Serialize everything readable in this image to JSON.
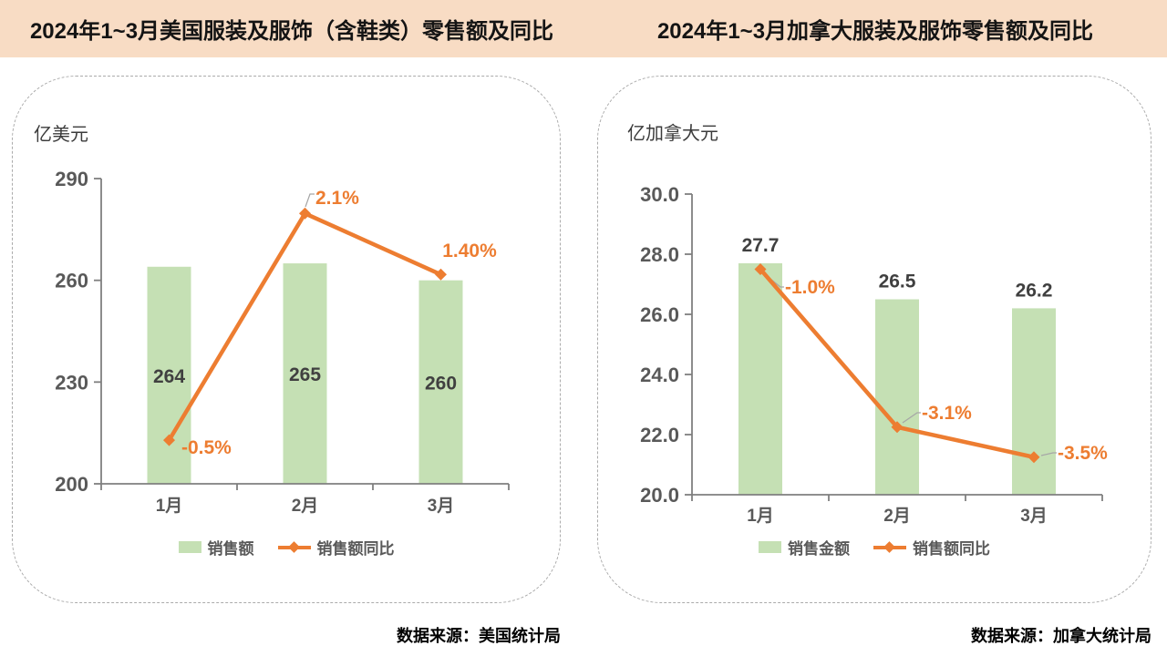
{
  "header": {
    "left_title": "2024年1~3月美国服装及服饰（含鞋类）零售额及同比",
    "right_title": "2024年1~3月加拿大服装及服饰零售额及同比",
    "bg_color": "#F8DCC4"
  },
  "colors": {
    "bar_fill": "#C5E0B4",
    "line": "#ED7D31",
    "axis_line": "#7F7F7F",
    "axis_label": "#595959",
    "bar_label": "#404040",
    "pct_label": "#ED7D31",
    "legend_text": "#595959",
    "leader_line": "#A6A6A6",
    "panel_border": "#ABABAB"
  },
  "chart_data": [
    {
      "type": "bar+line",
      "title": "2024年1~3月美国服装及服饰（含鞋类）零售额及同比",
      "unit_label": "亿美元",
      "categories": [
        "1月",
        "2月",
        "3月"
      ],
      "series": [
        {
          "name": "销售额",
          "type": "bar",
          "values": [
            264,
            265,
            260
          ],
          "labels": [
            "264",
            "265",
            "260"
          ]
        },
        {
          "name": "销售额同比",
          "type": "line",
          "values": [
            -0.5,
            2.1,
            1.4
          ],
          "labels": [
            "-0.5%",
            "2.1%",
            "1.40%"
          ]
        }
      ],
      "y_axis": {
        "min": 200,
        "max": 290,
        "ticks": [
          "290",
          "260",
          "230",
          "200"
        ]
      },
      "secondary_y_axis": {
        "min": -1.0,
        "max": 2.5,
        "visible": false
      },
      "legend": [
        "销售额",
        "销售额同比"
      ],
      "legend_position": "bottom",
      "grid": false,
      "source": "数据来源：美国统计局"
    },
    {
      "type": "bar+line",
      "title": "2024年1~3月加拿大服装及服饰零售额及同比",
      "unit_label": "亿加拿大元",
      "categories": [
        "1月",
        "2月",
        "3月"
      ],
      "series": [
        {
          "name": "销售金额",
          "type": "bar",
          "values": [
            27.7,
            26.5,
            26.2
          ],
          "labels": [
            "27.7",
            "26.5",
            "26.2"
          ]
        },
        {
          "name": "销售额同比",
          "type": "line",
          "values": [
            -1.0,
            -3.1,
            -3.5
          ],
          "labels": [
            "-1.0%",
            "-3.1%",
            "-3.5%"
          ]
        }
      ],
      "y_axis": {
        "min": 20.0,
        "max": 30.0,
        "ticks": [
          "30.0",
          "28.0",
          "26.0",
          "24.0",
          "22.0",
          "20.0"
        ]
      },
      "secondary_y_axis": {
        "min": -4.0,
        "max": 0.0,
        "visible": false
      },
      "legend": [
        "销售金额",
        "销售额同比"
      ],
      "legend_position": "bottom",
      "grid": false,
      "source": "数据来源：加拿大统计局"
    }
  ]
}
